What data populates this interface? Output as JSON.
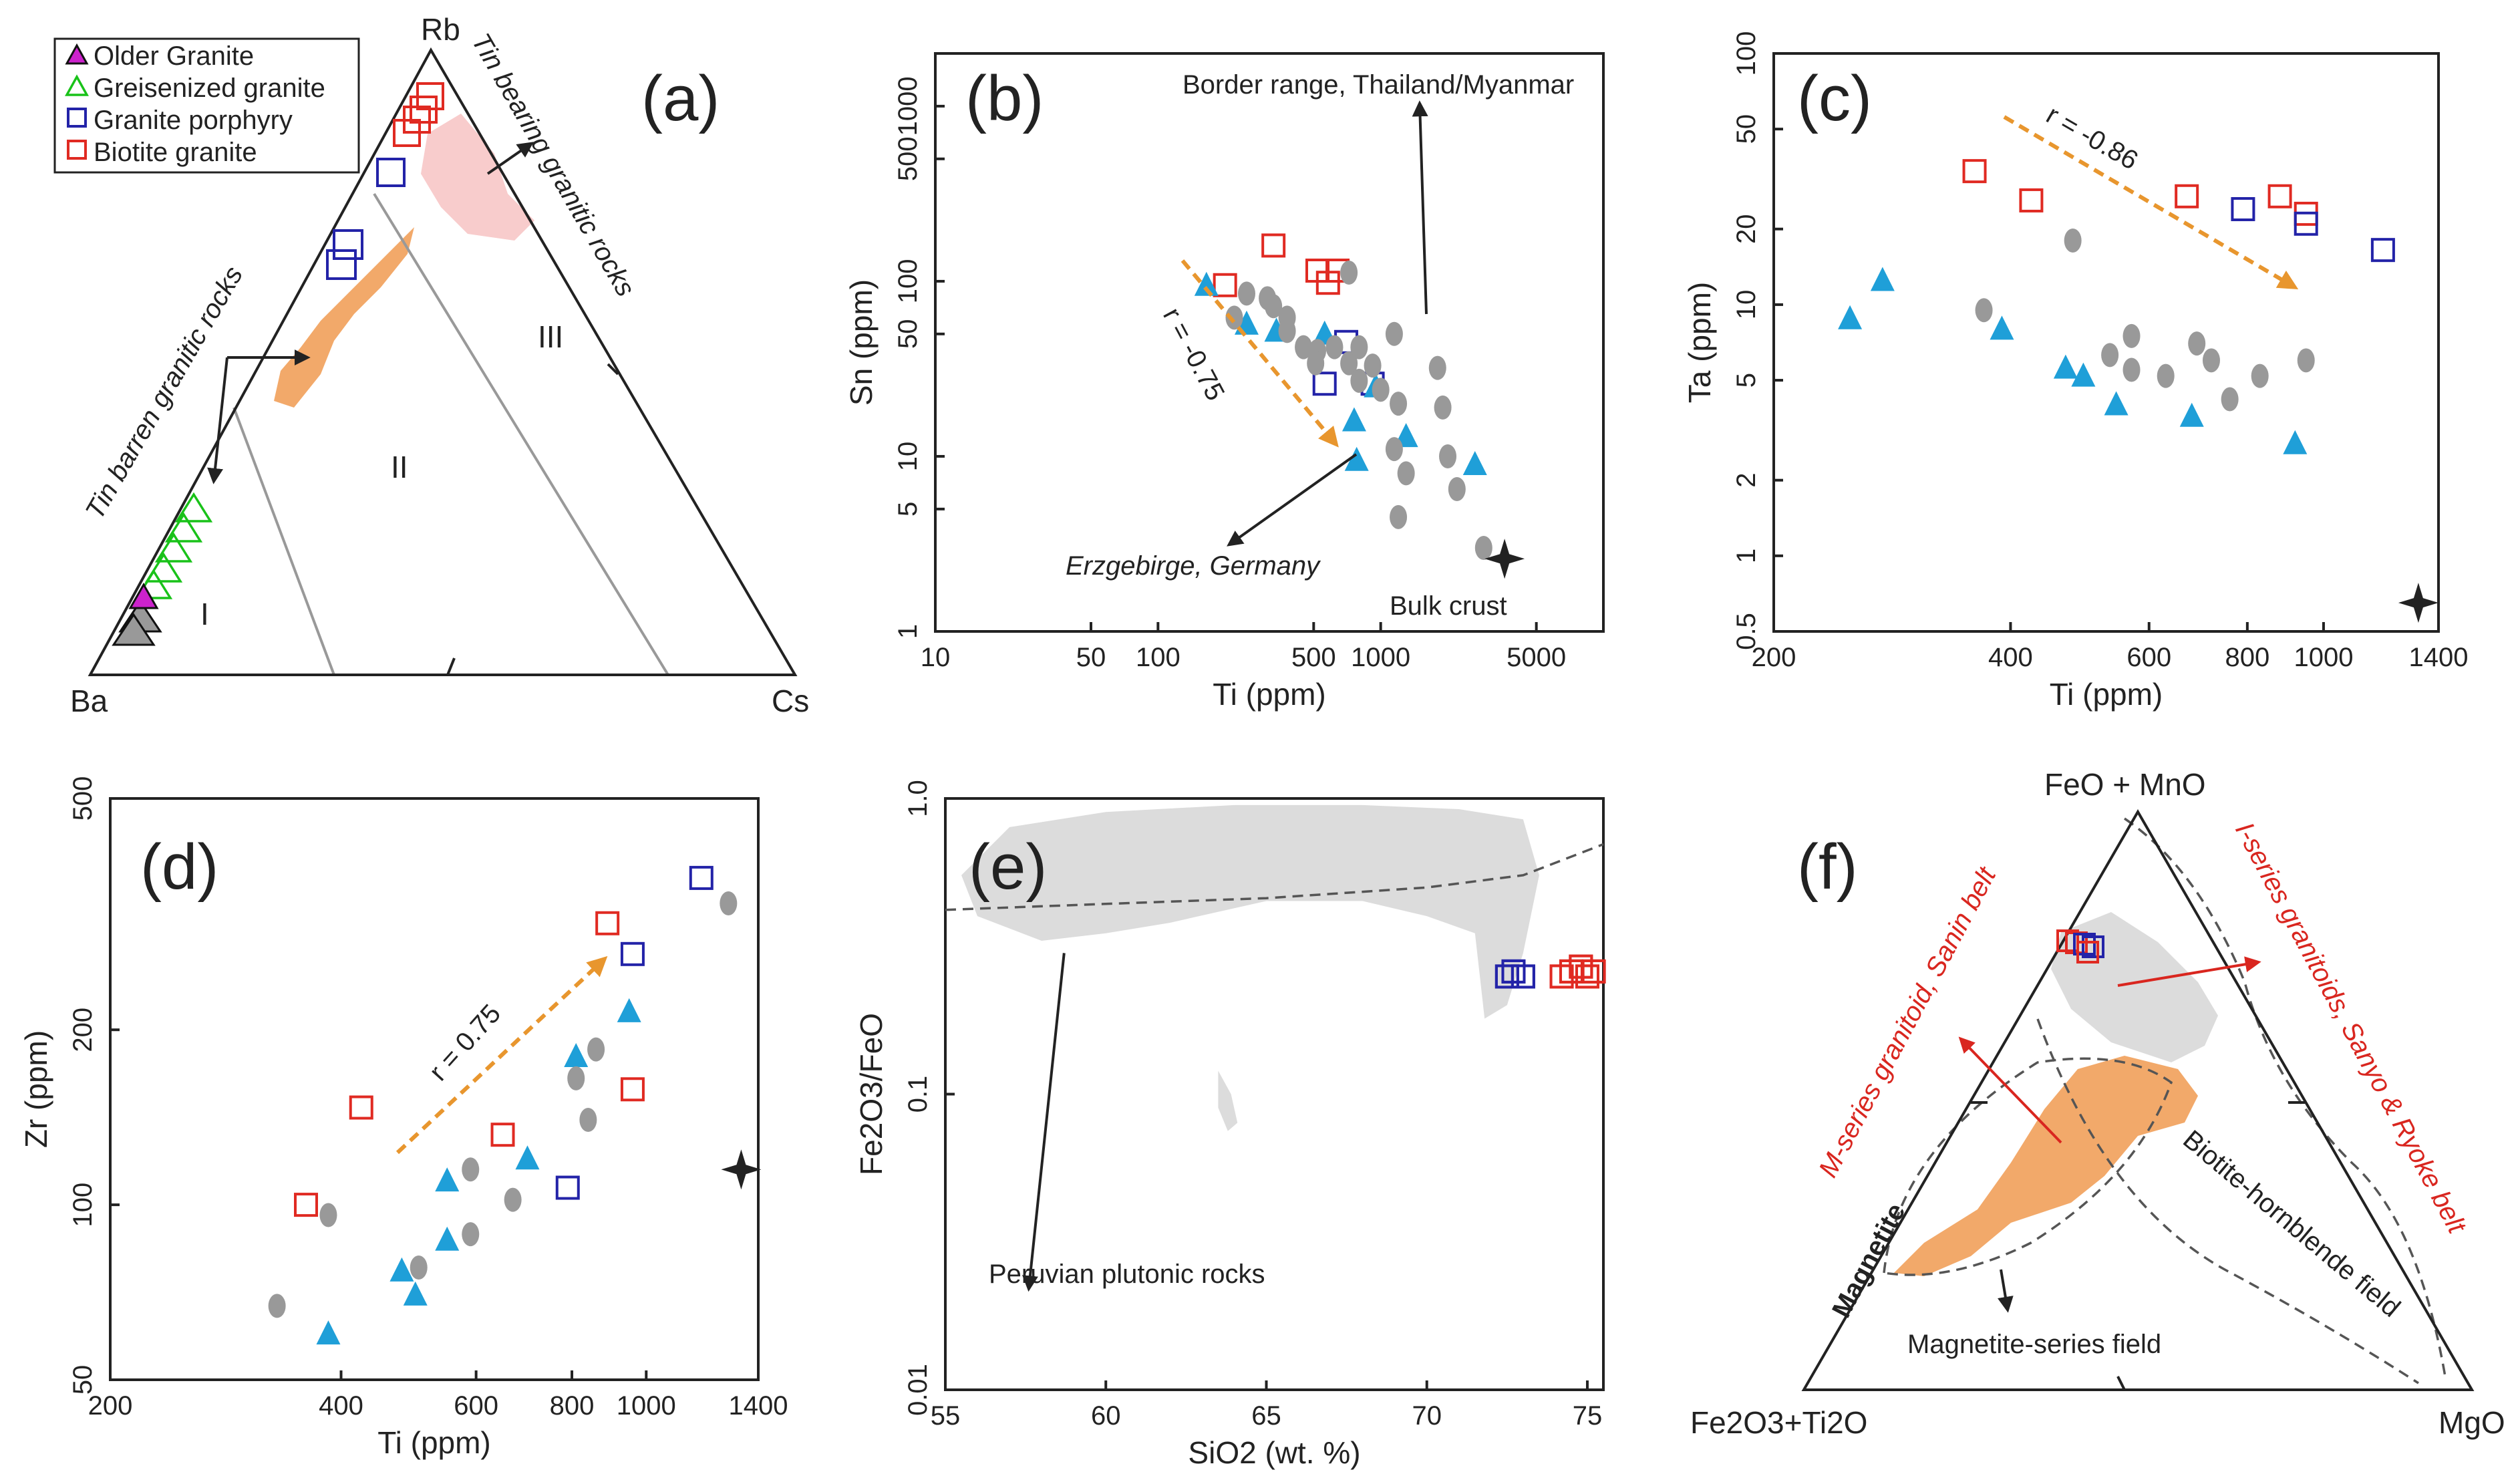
{
  "colors": {
    "older_granite": "#cc22cc",
    "greisenized": "#19c219",
    "porphyry": "#2323a8",
    "biotite": "#e02a22",
    "blue_triangle": "#1f9fd8",
    "grey_ellipse": "#999999",
    "orange_field": "#f2a96a",
    "pink_field": "#f8cccc",
    "grey_field": "#dcdcdc"
  },
  "panels": {
    "a": "(a)",
    "b": "(b)",
    "c": "(c)",
    "d": "(d)",
    "e": "(e)",
    "f": "(f)"
  },
  "legend": {
    "older_granite": "Older Granite",
    "greisenized": "Greisenized granite",
    "porphyry": "Granite porphyry",
    "biotite": "Biotite granite"
  },
  "panel_a": {
    "apex_top": "Rb",
    "apex_left": "Ba",
    "apex_right": "Cs",
    "field_1": "I",
    "field_2": "II",
    "field_3": "III",
    "label_bearing": "Tin bearing granitic rocks",
    "label_barren": "Tin barren granitic rocks"
  },
  "chart_data": [
    {
      "panel": "b",
      "type": "scatter",
      "xscale": "log",
      "yscale": "log",
      "xlabel": "Ti (ppm)",
      "ylabel": "Sn (ppm)",
      "xlim": [
        10,
        10000
      ],
      "ylim": [
        1,
        2000
      ],
      "xticks": [
        "10",
        "50",
        "100",
        "500",
        "1000",
        "5000"
      ],
      "yticks": [
        "1",
        "5",
        "10",
        "50",
        "100",
        "500",
        "1000"
      ],
      "series": [
        {
          "name": "Biotite granite",
          "marker": "open-square-red",
          "points": [
            [
              200,
              95
            ],
            [
              330,
              160
            ],
            [
              520,
              115
            ],
            [
              640,
              115
            ],
            [
              580,
              98
            ]
          ]
        },
        {
          "name": "Granite porphyry",
          "marker": "open-square-blue",
          "points": [
            [
              700,
              45
            ],
            [
              560,
              26
            ],
            [
              920,
              26
            ]
          ]
        },
        {
          "name": "blue triangles",
          "marker": "triangle-blue",
          "points": [
            [
              165,
              95
            ],
            [
              250,
              57
            ],
            [
              340,
              52
            ],
            [
              560,
              50
            ],
            [
              950,
              25
            ],
            [
              760,
              16
            ],
            [
              1300,
              13
            ],
            [
              780,
              9.5
            ],
            [
              2650,
              9
            ]
          ]
        },
        {
          "name": "grey ellipses",
          "marker": "ellipse-grey",
          "points": [
            [
              220,
              62
            ],
            [
              250,
              85
            ],
            [
              310,
              80
            ],
            [
              330,
              72
            ],
            [
              380,
              52
            ],
            [
              380,
              62
            ],
            [
              450,
              42
            ],
            [
              520,
              40
            ],
            [
              720,
              112
            ],
            [
              510,
              34
            ],
            [
              620,
              42
            ],
            [
              720,
              34
            ],
            [
              800,
              42
            ],
            [
              800,
              27
            ],
            [
              920,
              33
            ],
            [
              1000,
              24
            ],
            [
              1150,
              50
            ],
            [
              1150,
              11
            ],
            [
              1200,
              20
            ],
            [
              1300,
              8
            ],
            [
              1800,
              32
            ],
            [
              1900,
              19
            ],
            [
              2000,
              10
            ],
            [
              2200,
              6.5
            ],
            [
              1200,
              4.5
            ],
            [
              2900,
              3
            ]
          ]
        },
        {
          "name": "Bulk crust",
          "marker": "star-black",
          "points": [
            [
              3600,
              2.6
            ]
          ]
        }
      ],
      "annotations": {
        "border": "Border range, Thailand/Myanmar",
        "erz": "Erzgebirge, Germany",
        "bulk": "Bulk crust",
        "r": "r = -0.75"
      }
    },
    {
      "panel": "c",
      "type": "scatter",
      "xscale": "log",
      "yscale": "log",
      "xlabel": "Ti (ppm)",
      "ylabel": "Ta (ppm)",
      "xlim": [
        200,
        1400
      ],
      "ylim": [
        0.5,
        100
      ],
      "xticks": [
        "200",
        "400",
        "600",
        "800",
        "1000",
        "1400"
      ],
      "yticks": [
        "0.5",
        "1",
        "2",
        "5",
        "10",
        "20",
        "50",
        "100"
      ],
      "series": [
        {
          "name": "Biotite granite",
          "marker": "open-square-red",
          "points": [
            [
              360,
              34
            ],
            [
              425,
              26
            ],
            [
              670,
              27
            ],
            [
              880,
              27
            ],
            [
              950,
              23
            ]
          ]
        },
        {
          "name": "Granite porphyry",
          "marker": "open-square-blue",
          "points": [
            [
              790,
              24
            ],
            [
              950,
              21
            ],
            [
              1190,
              16.5
            ]
          ]
        },
        {
          "name": "blue triangles",
          "marker": "triangle-blue",
          "points": [
            [
              250,
              8.8
            ],
            [
              275,
              12.5
            ],
            [
              390,
              8
            ],
            [
              470,
              5.6
            ],
            [
              495,
              5.2
            ],
            [
              545,
              4
            ],
            [
              680,
              3.6
            ],
            [
              920,
              2.8
            ]
          ]
        },
        {
          "name": "grey ellipses",
          "marker": "ellipse-grey",
          "points": [
            [
              370,
              9.5
            ],
            [
              480,
              18
            ],
            [
              535,
              6.3
            ],
            [
              570,
              7.5
            ],
            [
              570,
              5.5
            ],
            [
              630,
              5.2
            ],
            [
              690,
              7
            ],
            [
              720,
              6
            ],
            [
              760,
              4.2
            ],
            [
              830,
              5.2
            ],
            [
              950,
              6
            ]
          ]
        },
        {
          "name": "Bulk crust",
          "marker": "star-black",
          "points": [
            [
              1320,
              0.65
            ]
          ]
        }
      ],
      "annotations": {
        "r": "r = -0.86"
      }
    },
    {
      "panel": "d",
      "type": "scatter",
      "xscale": "log",
      "yscale": "log",
      "xlabel": "Ti (ppm)",
      "ylabel": "Zr (ppm)",
      "xlim": [
        200,
        1400
      ],
      "ylim": [
        50,
        500
      ],
      "xticks": [
        "200",
        "400",
        "600",
        "800",
        "1000",
        "1400"
      ],
      "yticks": [
        "50",
        "100",
        "200",
        "500"
      ],
      "series": [
        {
          "name": "Biotite granite",
          "marker": "open-square-red",
          "points": [
            [
              360,
              100
            ],
            [
              425,
              147
            ],
            [
              650,
              132
            ],
            [
              890,
              305
            ],
            [
              960,
              158
            ]
          ]
        },
        {
          "name": "Granite porphyry",
          "marker": "open-square-blue",
          "points": [
            [
              790,
              107
            ],
            [
              960,
              270
            ],
            [
              1180,
              365
            ]
          ]
        },
        {
          "name": "blue triangles",
          "marker": "triangle-blue",
          "points": [
            [
              385,
              60
            ],
            [
              480,
              77
            ],
            [
              500,
              70
            ],
            [
              550,
              110
            ],
            [
              550,
              87
            ],
            [
              700,
              120
            ],
            [
              810,
              180
            ],
            [
              950,
              215
            ]
          ]
        },
        {
          "name": "grey ellipses",
          "marker": "ellipse-grey",
          "points": [
            [
              330,
              67
            ],
            [
              385,
              96
            ],
            [
              505,
              78
            ],
            [
              590,
              115
            ],
            [
              590,
              89
            ],
            [
              670,
              102
            ],
            [
              810,
              165
            ],
            [
              860,
              185
            ],
            [
              840,
              140
            ],
            [
              1280,
              330
            ]
          ]
        },
        {
          "name": "Bulk crust",
          "marker": "star-black",
          "points": [
            [
              1330,
              115
            ]
          ]
        }
      ],
      "annotations": {
        "r": "r = 0.75"
      }
    },
    {
      "panel": "e",
      "type": "scatter",
      "xscale": "linear",
      "yscale": "log",
      "xlabel": "SiO<sub>2</sub> (wt. %)",
      "xlabel_text": "SiO2 (wt. %)",
      "ylabel": "Fe2O3/FeO",
      "xlim": [
        55,
        75.5
      ],
      "ylim": [
        0.01,
        1
      ],
      "xticks": [
        "55",
        "60",
        "65",
        "70",
        "75"
      ],
      "yticks": [
        "0.01",
        "0.1",
        "1.0"
      ],
      "series": [
        {
          "name": "Granite porphyry",
          "marker": "open-square-blue",
          "points": [
            [
              72.5,
              0.25
            ],
            [
              72.7,
              0.26
            ],
            [
              73.0,
              0.25
            ]
          ]
        },
        {
          "name": "Biotite granite",
          "marker": "open-square-red",
          "points": [
            [
              74.2,
              0.25
            ],
            [
              74.5,
              0.26
            ],
            [
              74.8,
              0.27
            ],
            [
              75.0,
              0.25
            ],
            [
              75.2,
              0.26
            ]
          ]
        }
      ],
      "annotations": {
        "peru": "Peruvian plutonic rocks"
      }
    }
  ],
  "panel_f": {
    "apex_top": "FeO + MnO",
    "apex_left": "Fe2O3+Ti2O",
    "apex_right": "MgO",
    "label_m": "M-series granitoid, Sanin belt",
    "label_i": "I-series granitoids, Sanyo & Ryoke belt",
    "label_mag": "Magnetite",
    "label_bio": "Biotite-hornblende field",
    "label_magfield": "Magnetite-series field"
  }
}
